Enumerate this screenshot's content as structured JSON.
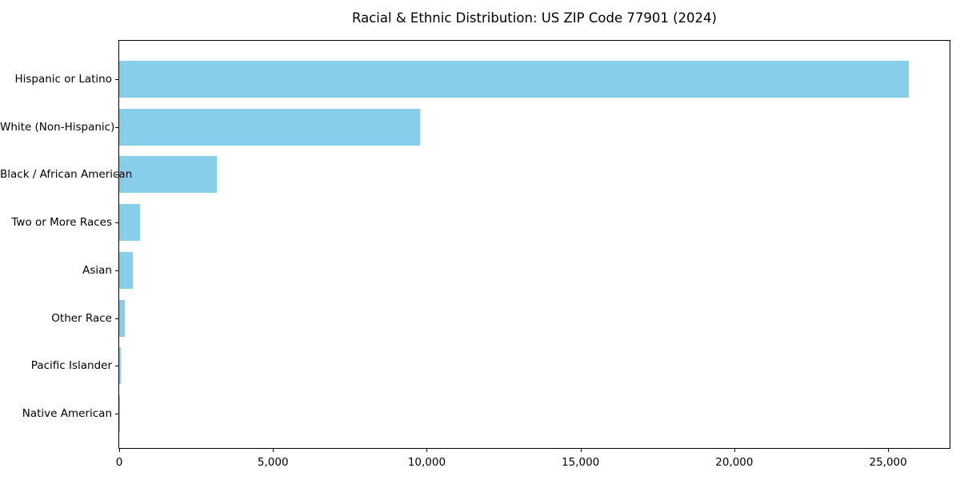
{
  "chart_data": {
    "type": "bar",
    "orientation": "horizontal",
    "title": "Racial & Ethnic Distribution: US ZIP Code 77901 (2024)",
    "categories": [
      "Hispanic or Latino",
      "White (Non-Hispanic)",
      "Black / African American",
      "Two or More Races",
      "Asian",
      "Other Race",
      "Pacific Islander",
      "Native American"
    ],
    "values": [
      25670,
      9770,
      3170,
      680,
      440,
      180,
      40,
      10
    ],
    "xlabel": "",
    "ylabel": "",
    "xlim": [
      0,
      27000
    ],
    "xticks": [
      0,
      5000,
      10000,
      15000,
      20000,
      25000
    ],
    "xtick_labels": [
      "0",
      "5,000",
      "10,000",
      "15,000",
      "20,000",
      "25,000"
    ],
    "bar_color": "#87CEEB",
    "spine_color": "#000000",
    "grid": false,
    "legend": null
  }
}
